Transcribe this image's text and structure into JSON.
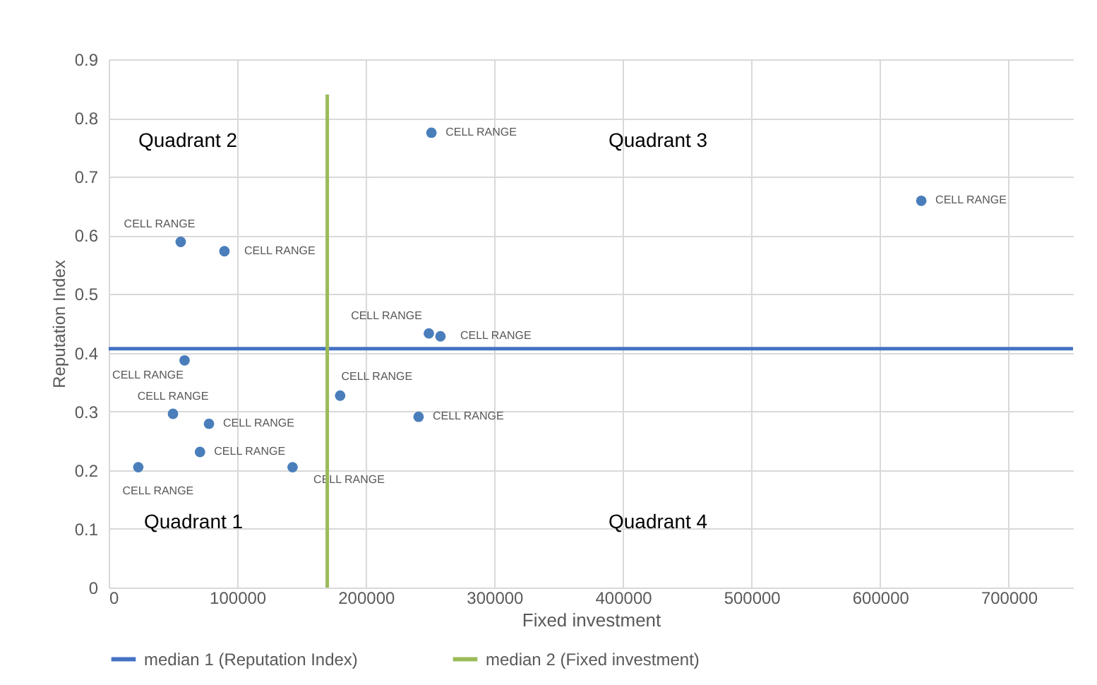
{
  "chart_data": {
    "type": "scatter",
    "xlabel": "Fixed investment",
    "ylabel": "Reputation Index",
    "xlim": [
      0,
      750000
    ],
    "xticks": [
      0,
      100000,
      200000,
      300000,
      400000,
      500000,
      600000,
      700000
    ],
    "ylim": [
      0,
      0.9
    ],
    "yticks": [
      0,
      0.1,
      0.2,
      0.3,
      0.4,
      0.5,
      0.6,
      0.7,
      0.8,
      0.9
    ],
    "grid": true,
    "legend": "bottom",
    "annotations": [
      "Quadrant 2",
      "Quadrant 3",
      "Quadrant 1",
      "Quadrant 4"
    ],
    "series": [
      {
        "marker": "circle",
        "color": "#4a7ebb",
        "x": [
          23000,
          56000,
          90000,
          59000,
          50000,
          78000,
          71000,
          143000,
          180000,
          241000,
          249000,
          258000,
          251000,
          632000
        ],
        "values": [
          0.205,
          0.589,
          0.573,
          0.387,
          0.296,
          0.279,
          0.231,
          0.205,
          0.327,
          0.291,
          0.433,
          0.428,
          0.775,
          0.659
        ],
        "value_labels": [
          "CELL RANGE",
          "CELL RANGE",
          "CELL RANGE",
          "CELL RANGE",
          "CELL RANGE",
          "CELL RANGE",
          "CELL RANGE",
          "CELL RANGE",
          "CELL RANGE",
          "CELL RANGE",
          "CELL RANGE",
          "CELL RANGE",
          "CELL RANGE",
          "CELL RANGE"
        ]
      },
      {
        "type": "line",
        "name": "median 1 (Reputation Index)",
        "color": "#4472c4",
        "x": [
          0,
          750000
        ],
        "values": [
          0.407,
          0.407
        ]
      },
      {
        "type": "line",
        "name": "median 2 (Fixed investment)",
        "color": "#9bbb59",
        "x": [
          170000,
          170000
        ],
        "values": [
          0,
          0.84
        ]
      }
    ]
  }
}
